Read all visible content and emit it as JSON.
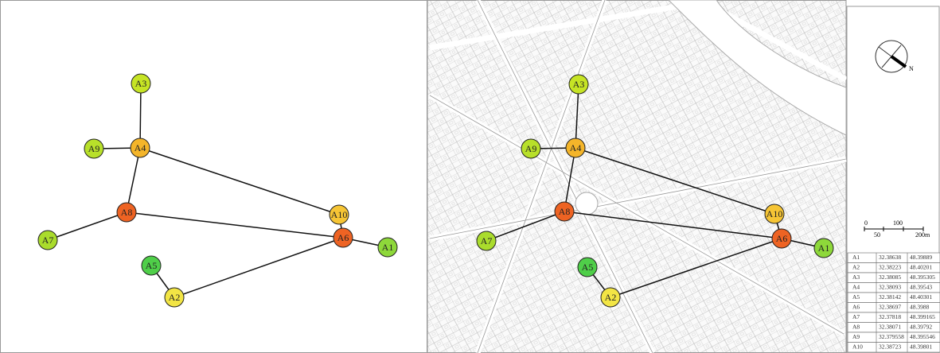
{
  "graph": {
    "nodes": [
      {
        "label": "A1",
        "color": "#8ed83a"
      },
      {
        "label": "A2",
        "color": "#f2e545"
      },
      {
        "label": "A3",
        "color": "#c6e425"
      },
      {
        "label": "A4",
        "color": "#f4b52a"
      },
      {
        "label": "A5",
        "color": "#4fcf49"
      },
      {
        "label": "A6",
        "color": "#ee6323"
      },
      {
        "label": "A7",
        "color": "#aadc2c"
      },
      {
        "label": "A8",
        "color": "#ee6323"
      },
      {
        "label": "A9",
        "color": "#b8e02a"
      },
      {
        "label": "A10",
        "color": "#f6c535"
      }
    ]
  },
  "map": {
    "compass": "N",
    "scale": [
      "0",
      "50",
      "100",
      "200m"
    ]
  },
  "table": {
    "rows": [
      [
        "A1",
        "32.38638",
        "48.39889"
      ],
      [
        "A2",
        "32.38223",
        "48.40201"
      ],
      [
        "A3",
        "32.38085",
        "48.395305"
      ],
      [
        "A4",
        "32.38093",
        "48.39543"
      ],
      [
        "A5",
        "32.38142",
        "48.40301"
      ],
      [
        "A6",
        "32.38697",
        "48.3988"
      ],
      [
        "A7",
        "32.37818",
        "48.399165"
      ],
      [
        "A8",
        "32.38071",
        "48.39792"
      ],
      [
        "A9",
        "32.379558",
        "48.395546"
      ],
      [
        "A10",
        "32.38723",
        "48.39801"
      ]
    ]
  }
}
